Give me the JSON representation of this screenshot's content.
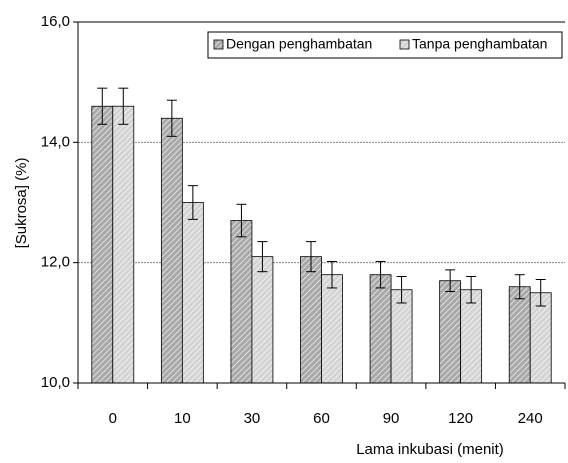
{
  "chart_data": {
    "type": "bar",
    "categories": [
      "0",
      "10",
      "30",
      "60",
      "90",
      "120",
      "240"
    ],
    "series": [
      {
        "name": "Dengan penghambatan",
        "color": "#a9a9a9",
        "values": [
          14.6,
          14.4,
          12.7,
          12.1,
          11.8,
          11.7,
          11.6
        ],
        "errors": [
          0.3,
          0.3,
          0.27,
          0.25,
          0.22,
          0.18,
          0.2
        ]
      },
      {
        "name": "Tanpa penghambatan",
        "color": "#d4d4d4",
        "values": [
          14.6,
          13.0,
          12.1,
          11.8,
          11.55,
          11.55,
          11.5
        ],
        "errors": [
          0.3,
          0.28,
          0.25,
          0.22,
          0.22,
          0.22,
          0.22
        ]
      }
    ],
    "xlabel": "Lama inkubasi (menit)",
    "ylabel": "[Sukrosa] (%)",
    "ylim": [
      10,
      16
    ],
    "yticks": [
      {
        "value": 10,
        "label": "10,0"
      },
      {
        "value": 12,
        "label": "12,0"
      },
      {
        "value": 14,
        "label": "14,0"
      },
      {
        "value": 16,
        "label": "16,0"
      }
    ],
    "grid": true,
    "legend": "top-right"
  }
}
